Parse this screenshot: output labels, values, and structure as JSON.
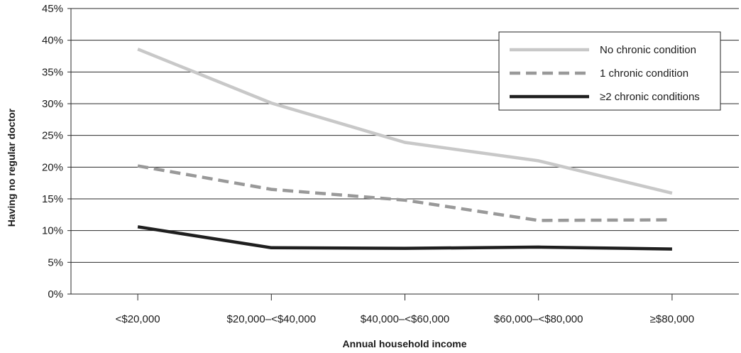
{
  "chart_data": {
    "type": "line",
    "title": "",
    "xlabel": "Annual household income",
    "ylabel": "Having no regular doctor",
    "categories": [
      "<$20,000",
      "$20,000–<$40,000",
      "$40,000–<$60,000",
      "$60,000–<$80,000",
      "≥$80,000"
    ],
    "ylim": [
      0,
      45
    ],
    "yticks": [
      "0%",
      "5%",
      "10%",
      "15%",
      "20%",
      "25%",
      "30%",
      "35%",
      "40%",
      "45%"
    ],
    "grid": true,
    "legend_position": "top-right",
    "series": [
      {
        "name": "No chronic condition",
        "values": [
          38.6,
          30.1,
          23.9,
          21.0,
          15.9
        ],
        "color": "#c8c8c8",
        "style": "solid"
      },
      {
        "name": "1 chronic condition",
        "values": [
          20.2,
          16.5,
          14.8,
          11.6,
          11.7
        ],
        "color": "#999999",
        "style": "dashed"
      },
      {
        "name": "≥2 chronic conditions",
        "values": [
          10.6,
          7.3,
          7.2,
          7.4,
          7.1
        ],
        "color": "#1f1f1f",
        "style": "solid"
      }
    ]
  }
}
